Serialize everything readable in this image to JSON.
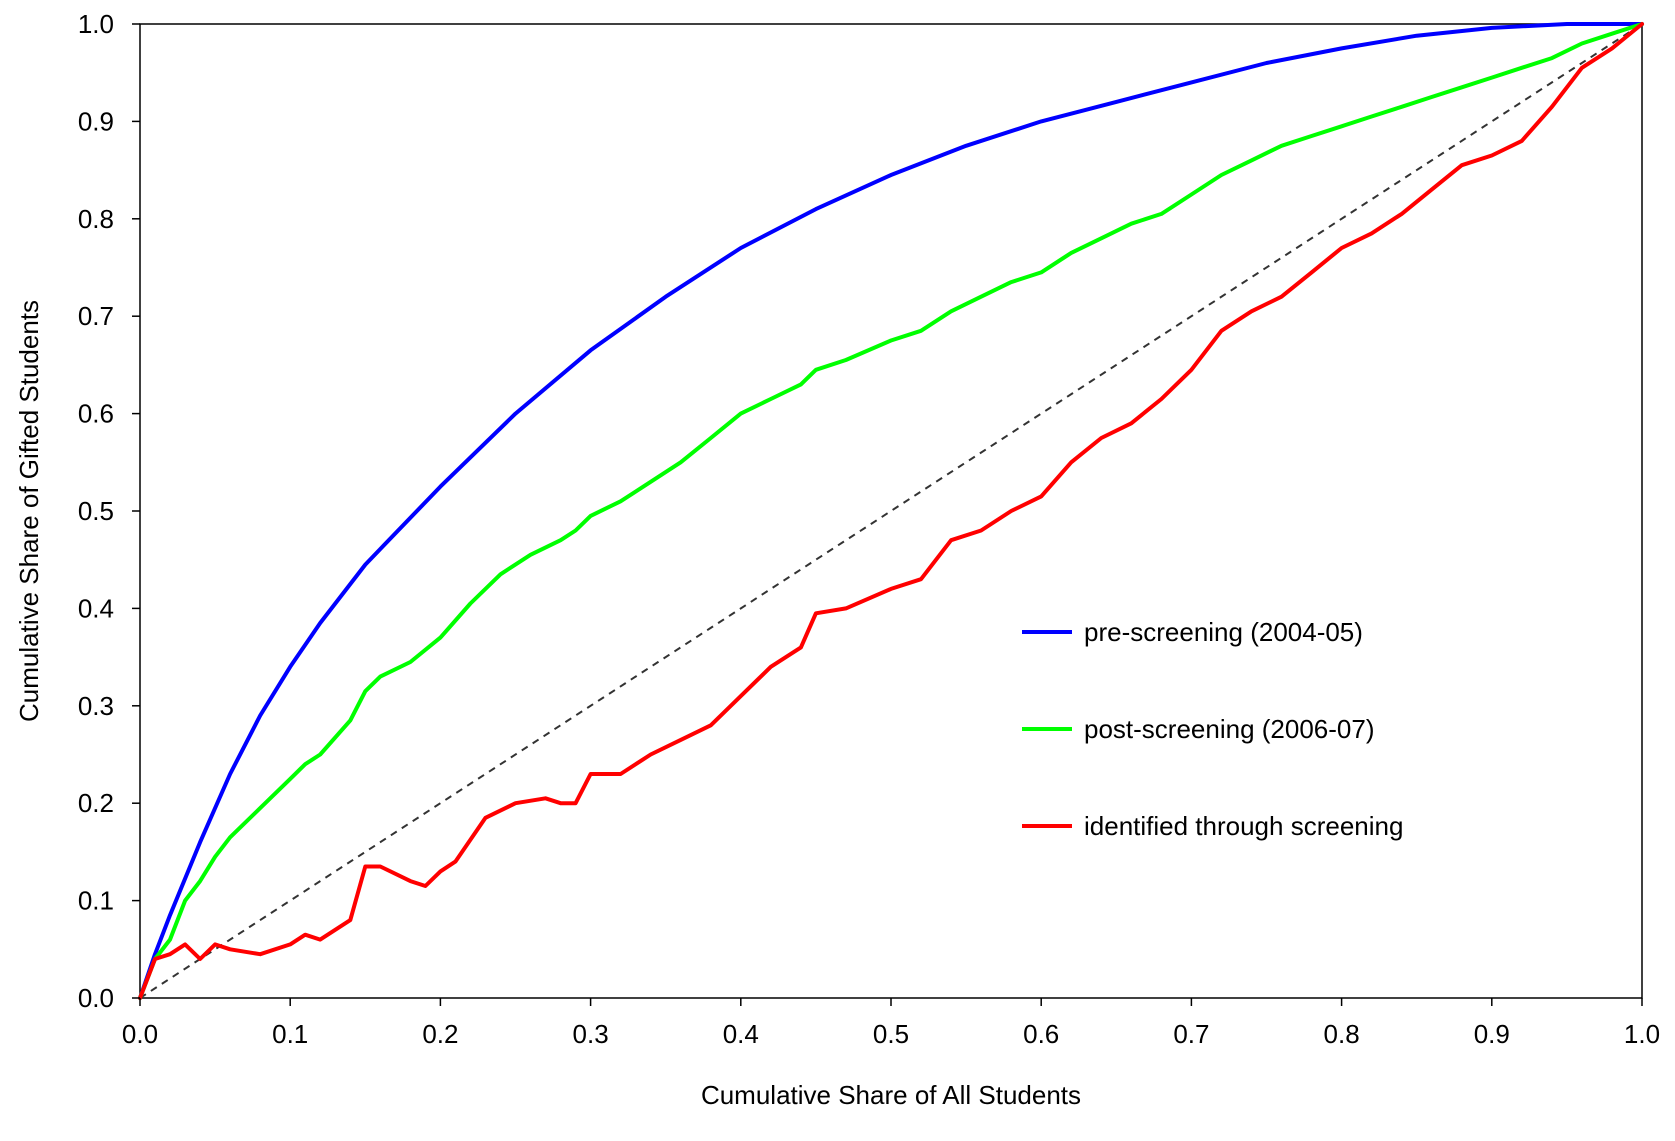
{
  "chart_data": {
    "type": "line",
    "title": "",
    "xlabel": "Cumulative Share of All Students",
    "ylabel": "Cumulative Share of Gifted Students",
    "xlim": [
      0,
      1
    ],
    "ylim": [
      0,
      1
    ],
    "x_ticks": [
      "0.0",
      "0.1",
      "0.2",
      "0.3",
      "0.4",
      "0.5",
      "0.6",
      "0.7",
      "0.8",
      "0.9",
      "1.0"
    ],
    "y_ticks": [
      "0.0",
      "0.1",
      "0.2",
      "0.3",
      "0.4",
      "0.5",
      "0.6",
      "0.7",
      "0.8",
      "0.9",
      "1.0"
    ],
    "grid": false,
    "legend_position": "right-center",
    "reference_line": {
      "style": "dashed",
      "color": "#333333",
      "x": [
        0,
        1
      ],
      "y": [
        0,
        1
      ]
    },
    "series": [
      {
        "name": "pre-screening (2004-05)",
        "color": "#0000ff",
        "x": [
          0,
          0.01,
          0.02,
          0.04,
          0.06,
          0.08,
          0.1,
          0.12,
          0.15,
          0.2,
          0.25,
          0.3,
          0.35,
          0.4,
          0.45,
          0.5,
          0.55,
          0.6,
          0.65,
          0.7,
          0.75,
          0.8,
          0.85,
          0.9,
          0.95,
          1.0
        ],
        "y": [
          0,
          0.045,
          0.085,
          0.16,
          0.23,
          0.29,
          0.34,
          0.385,
          0.445,
          0.525,
          0.6,
          0.665,
          0.72,
          0.77,
          0.81,
          0.845,
          0.875,
          0.9,
          0.92,
          0.94,
          0.96,
          0.975,
          0.988,
          0.996,
          1.0,
          1.0
        ]
      },
      {
        "name": "post-screening (2006-07)",
        "color": "#00ff00",
        "x": [
          0,
          0.01,
          0.02,
          0.03,
          0.04,
          0.05,
          0.06,
          0.08,
          0.1,
          0.11,
          0.12,
          0.14,
          0.15,
          0.16,
          0.18,
          0.2,
          0.22,
          0.24,
          0.26,
          0.28,
          0.29,
          0.3,
          0.32,
          0.34,
          0.36,
          0.38,
          0.4,
          0.42,
          0.44,
          0.45,
          0.47,
          0.5,
          0.52,
          0.54,
          0.56,
          0.58,
          0.6,
          0.62,
          0.64,
          0.66,
          0.68,
          0.7,
          0.72,
          0.74,
          0.76,
          0.78,
          0.8,
          0.82,
          0.84,
          0.86,
          0.88,
          0.9,
          0.92,
          0.94,
          0.96,
          0.98,
          1.0
        ],
        "y": [
          0,
          0.04,
          0.06,
          0.1,
          0.12,
          0.145,
          0.165,
          0.195,
          0.225,
          0.24,
          0.25,
          0.285,
          0.315,
          0.33,
          0.345,
          0.37,
          0.405,
          0.435,
          0.455,
          0.47,
          0.48,
          0.495,
          0.51,
          0.53,
          0.55,
          0.575,
          0.6,
          0.615,
          0.63,
          0.645,
          0.655,
          0.675,
          0.685,
          0.705,
          0.72,
          0.735,
          0.745,
          0.765,
          0.78,
          0.795,
          0.805,
          0.825,
          0.845,
          0.86,
          0.875,
          0.885,
          0.895,
          0.905,
          0.915,
          0.925,
          0.935,
          0.945,
          0.955,
          0.965,
          0.98,
          0.99,
          1.0
        ]
      },
      {
        "name": "identified through screening",
        "color": "#ff0000",
        "x": [
          0,
          0.01,
          0.02,
          0.03,
          0.04,
          0.05,
          0.06,
          0.08,
          0.1,
          0.11,
          0.12,
          0.14,
          0.15,
          0.16,
          0.18,
          0.19,
          0.2,
          0.21,
          0.23,
          0.25,
          0.27,
          0.28,
          0.29,
          0.3,
          0.32,
          0.34,
          0.36,
          0.38,
          0.4,
          0.42,
          0.44,
          0.45,
          0.47,
          0.5,
          0.52,
          0.54,
          0.56,
          0.58,
          0.6,
          0.62,
          0.64,
          0.66,
          0.68,
          0.7,
          0.72,
          0.74,
          0.76,
          0.78,
          0.8,
          0.82,
          0.84,
          0.86,
          0.88,
          0.9,
          0.92,
          0.94,
          0.96,
          0.98,
          1.0
        ],
        "y": [
          0,
          0.04,
          0.045,
          0.055,
          0.04,
          0.055,
          0.05,
          0.045,
          0.055,
          0.065,
          0.06,
          0.08,
          0.135,
          0.135,
          0.12,
          0.115,
          0.13,
          0.14,
          0.185,
          0.2,
          0.205,
          0.2,
          0.2,
          0.23,
          0.23,
          0.25,
          0.265,
          0.28,
          0.31,
          0.34,
          0.36,
          0.395,
          0.4,
          0.42,
          0.43,
          0.47,
          0.48,
          0.5,
          0.515,
          0.55,
          0.575,
          0.59,
          0.615,
          0.645,
          0.685,
          0.705,
          0.72,
          0.745,
          0.77,
          0.785,
          0.805,
          0.83,
          0.855,
          0.865,
          0.88,
          0.915,
          0.955,
          0.975,
          1.0
        ]
      }
    ]
  }
}
